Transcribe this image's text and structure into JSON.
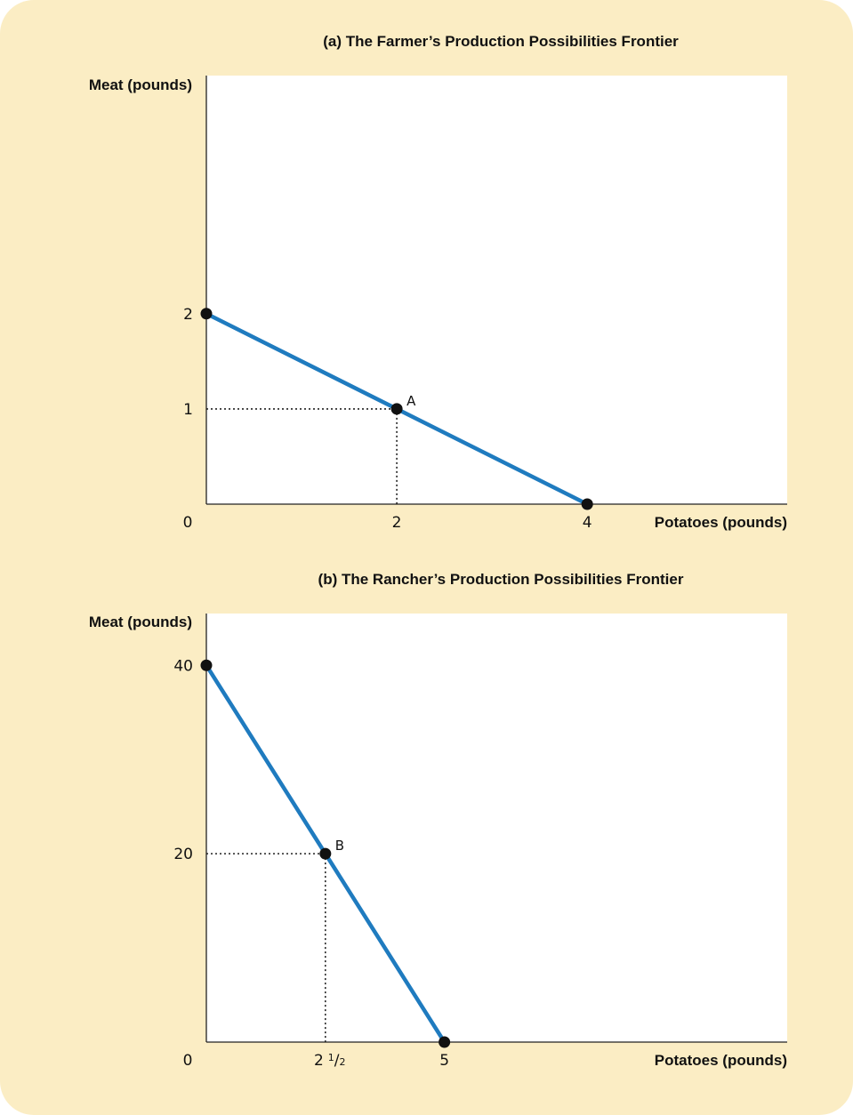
{
  "chart_data": [
    {
      "type": "line",
      "title": "(a) The Farmer’s Production Possibilities Frontier",
      "xlabel": "Potatoes (pounds)",
      "ylabel": "Meat (pounds)",
      "xlim": [
        0,
        6.1
      ],
      "ylim": [
        0,
        4.5
      ],
      "x_ticks": [
        {
          "value": 0,
          "label": "0"
        },
        {
          "value": 2,
          "label": "2"
        },
        {
          "value": 4,
          "label": "4"
        }
      ],
      "y_ticks": [
        {
          "value": 1,
          "label": "1"
        },
        {
          "value": 2,
          "label": "2"
        }
      ],
      "series": [
        {
          "points": [
            {
              "x": 0,
              "y": 2
            },
            {
              "x": 4,
              "y": 0
            }
          ],
          "color": "#1f7bbf"
        }
      ],
      "points": [
        {
          "x": 0,
          "y": 2,
          "label": ""
        },
        {
          "x": 2,
          "y": 1,
          "label": "A"
        },
        {
          "x": 4,
          "y": 0,
          "label": ""
        }
      ],
      "guides": [
        {
          "x": 2,
          "y": 1
        }
      ]
    },
    {
      "type": "line",
      "title": "(b) The Rancher’s Production Possibilities Frontier",
      "xlabel": "Potatoes (pounds)",
      "ylabel": "Meat (pounds)",
      "xlim": [
        0,
        12.2
      ],
      "ylim": [
        0,
        45.5
      ],
      "x_ticks": [
        {
          "value": 0,
          "label": "0"
        },
        {
          "value": 2.5,
          "label": "2",
          "fraction": "1/2"
        },
        {
          "value": 5,
          "label": "5"
        }
      ],
      "y_ticks": [
        {
          "value": 20,
          "label": "20"
        },
        {
          "value": 40,
          "label": "40"
        }
      ],
      "series": [
        {
          "points": [
            {
              "x": 0,
              "y": 40
            },
            {
              "x": 5,
              "y": 0
            }
          ],
          "color": "#1f7bbf"
        }
      ],
      "points": [
        {
          "x": 0,
          "y": 40,
          "label": ""
        },
        {
          "x": 2.5,
          "y": 20,
          "label": "B"
        },
        {
          "x": 5,
          "y": 0,
          "label": ""
        }
      ],
      "guides": [
        {
          "x": 2.5,
          "y": 20
        }
      ]
    }
  ]
}
